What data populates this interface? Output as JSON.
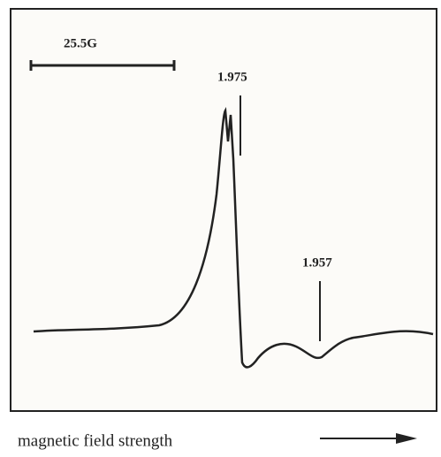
{
  "figure": {
    "scale_bar": "25.5G",
    "markers": [
      "1.975",
      "1.957"
    ],
    "x_label": "magnetic field strength"
  }
}
